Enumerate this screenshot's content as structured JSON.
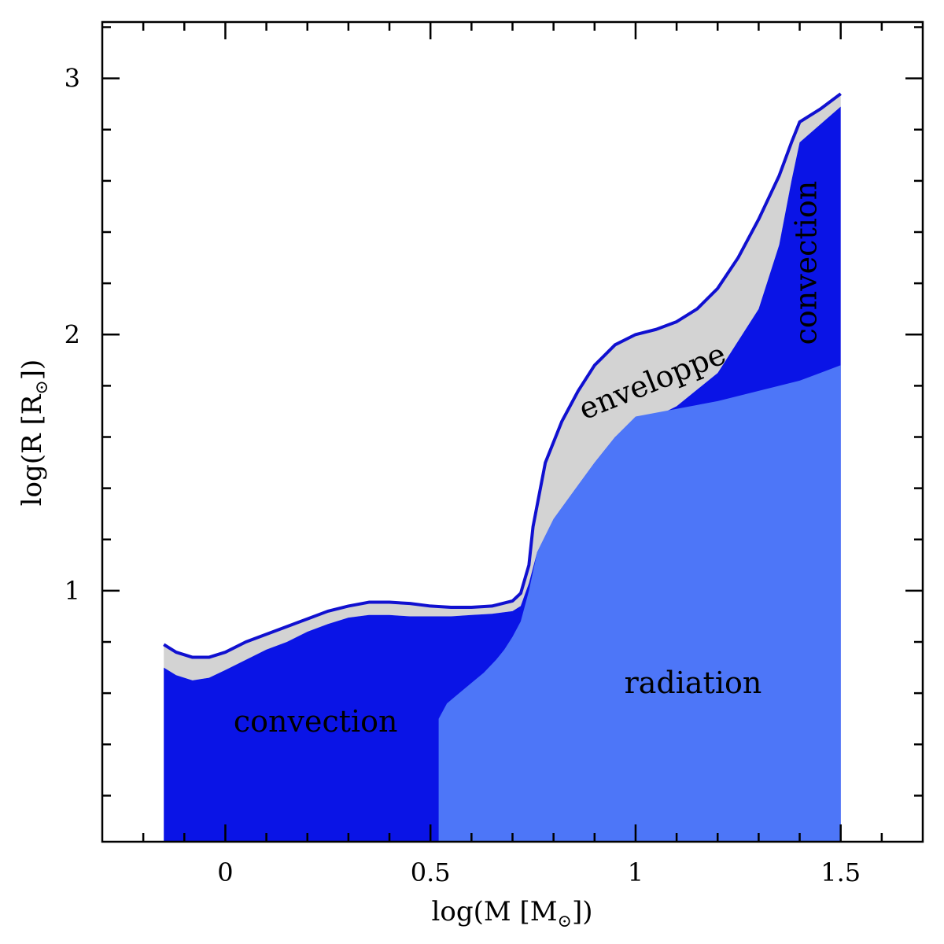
{
  "chart_data": {
    "type": "area",
    "title": "",
    "xlabel_prefix": "log(M [M",
    "xlabel_sub": "⊙",
    "xlabel_suffix": "])",
    "ylabel_prefix": "log(R [R",
    "ylabel_sub": "⊙",
    "ylabel_suffix": "])",
    "xlim": [
      -0.3,
      1.7
    ],
    "ylim": [
      0.02,
      3.22
    ],
    "xticks_major": [
      0,
      0.5,
      1,
      1.5
    ],
    "xtick_labels": [
      "0",
      "0.5",
      "1",
      "1.5"
    ],
    "xticks_minor": [
      -0.2,
      -0.1,
      0.1,
      0.2,
      0.3,
      0.4,
      0.6,
      0.7,
      0.8,
      0.9,
      1.1,
      1.2,
      1.3,
      1.4,
      1.6
    ],
    "yticks_major": [
      1,
      2,
      3
    ],
    "ytick_labels": [
      "1",
      "2",
      "3"
    ],
    "yticks_minor": [
      0.2,
      0.4,
      0.6,
      0.8,
      1.2,
      1.4,
      1.6,
      1.8,
      2.2,
      2.4,
      2.6,
      2.8,
      3.2
    ],
    "colors": {
      "convection": "#0a14e6",
      "radiation": "#4d76f8",
      "envelope": "#d3d3d3",
      "surface_line": "#1010d0"
    },
    "series": [
      {
        "name": "surface radius",
        "x": [
          -0.15,
          -0.12,
          -0.08,
          -0.04,
          0.0,
          0.05,
          0.1,
          0.15,
          0.2,
          0.25,
          0.3,
          0.35,
          0.4,
          0.45,
          0.5,
          0.55,
          0.6,
          0.65,
          0.7,
          0.72,
          0.74,
          0.75,
          0.78,
          0.82,
          0.86,
          0.9,
          0.95,
          1.0,
          1.05,
          1.1,
          1.15,
          1.2,
          1.25,
          1.3,
          1.35,
          1.38,
          1.4,
          1.45,
          1.5
        ],
        "y": [
          0.79,
          0.76,
          0.74,
          0.74,
          0.76,
          0.8,
          0.83,
          0.86,
          0.89,
          0.92,
          0.94,
          0.955,
          0.955,
          0.95,
          0.94,
          0.935,
          0.935,
          0.94,
          0.96,
          0.99,
          1.1,
          1.25,
          1.5,
          1.66,
          1.78,
          1.88,
          1.96,
          2.0,
          2.02,
          2.05,
          2.1,
          2.18,
          2.3,
          2.45,
          2.62,
          2.75,
          2.83,
          2.88,
          2.94
        ]
      },
      {
        "name": "envelope base",
        "x": [
          -0.15,
          -0.12,
          -0.08,
          -0.04,
          0.0,
          0.05,
          0.1,
          0.15,
          0.2,
          0.25,
          0.3,
          0.35,
          0.4,
          0.45,
          0.5,
          0.55,
          0.6,
          0.65,
          0.7,
          0.72,
          0.74,
          0.76,
          0.8,
          0.85,
          0.9,
          0.95,
          1.0,
          1.05,
          1.1,
          1.2,
          1.3,
          1.35,
          1.38,
          1.4,
          1.45,
          1.5
        ],
        "y": [
          0.7,
          0.67,
          0.65,
          0.66,
          0.69,
          0.73,
          0.77,
          0.8,
          0.84,
          0.87,
          0.895,
          0.905,
          0.905,
          0.9,
          0.9,
          0.9,
          0.905,
          0.91,
          0.92,
          0.94,
          1.03,
          1.15,
          1.28,
          1.39,
          1.5,
          1.6,
          1.66,
          1.68,
          1.72,
          1.85,
          2.1,
          2.35,
          2.6,
          2.75,
          2.82,
          2.89
        ]
      },
      {
        "name": "inner convective boundary",
        "x": [
          0.52,
          0.52,
          0.54,
          0.57,
          0.6,
          0.63,
          0.66,
          0.68,
          0.7,
          0.72,
          0.74
        ],
        "y": [
          0.02,
          0.5,
          0.56,
          0.6,
          0.64,
          0.68,
          0.73,
          0.77,
          0.82,
          0.88,
          1.0
        ]
      },
      {
        "name": "outer convective zone base",
        "x": [
          1.0,
          1.1,
          1.2,
          1.3,
          1.4,
          1.45,
          1.5
        ],
        "y": [
          1.68,
          1.71,
          1.74,
          1.78,
          1.82,
          1.85,
          1.88
        ]
      }
    ],
    "annotations": [
      {
        "text": "convection",
        "x": 0.22,
        "y": 0.45,
        "rotation": 0
      },
      {
        "text": "radiation",
        "x": 1.14,
        "y": 0.6,
        "rotation": 0
      },
      {
        "text": "enveloppe",
        "x": 1.05,
        "y": 1.78,
        "rotation": -22
      },
      {
        "text": "convection",
        "x": 1.44,
        "y": 2.28,
        "rotation": -90
      }
    ]
  }
}
